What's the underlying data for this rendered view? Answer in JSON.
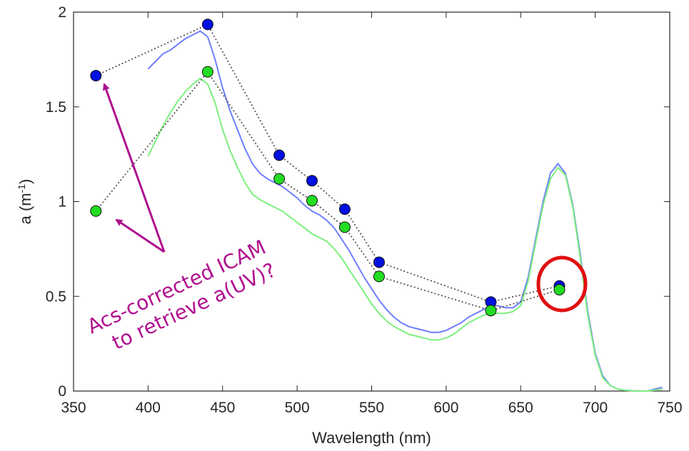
{
  "chart_data": {
    "type": "line",
    "title": "",
    "xlabel": "Wavelength (nm)",
    "ylabel_main": "a (m",
    "ylabel_sup": "-1",
    "ylabel_close": ")",
    "xlim": [
      350,
      750
    ],
    "ylim": [
      0,
      2
    ],
    "xticks": [
      350,
      400,
      450,
      500,
      550,
      600,
      650,
      700,
      750
    ],
    "yticks": [
      0,
      0.5,
      1,
      1.5,
      2
    ],
    "ytick_labels": [
      "0",
      "0.5",
      "1",
      "1.5",
      "2"
    ],
    "grid": false,
    "series": [
      {
        "color": "#6f7fff",
        "x": [
          400,
          405,
          410,
          415,
          420,
          425,
          430,
          435,
          440,
          445,
          450,
          455,
          460,
          465,
          470,
          475,
          480,
          485,
          490,
          495,
          500,
          505,
          510,
          515,
          520,
          525,
          530,
          535,
          540,
          545,
          550,
          555,
          560,
          565,
          570,
          575,
          580,
          585,
          590,
          595,
          600,
          605,
          610,
          615,
          620,
          625,
          630,
          635,
          640,
          645,
          650,
          655,
          660,
          665,
          670,
          675,
          680,
          685,
          690,
          695,
          700,
          705,
          710,
          715,
          720,
          725,
          730,
          735,
          740,
          745
        ],
        "values": [
          1.7,
          1.74,
          1.78,
          1.8,
          1.83,
          1.86,
          1.88,
          1.9,
          1.87,
          1.75,
          1.6,
          1.48,
          1.38,
          1.28,
          1.2,
          1.15,
          1.12,
          1.1,
          1.08,
          1.05,
          1.02,
          0.98,
          0.95,
          0.93,
          0.9,
          0.86,
          0.8,
          0.74,
          0.67,
          0.6,
          0.54,
          0.48,
          0.43,
          0.39,
          0.36,
          0.34,
          0.33,
          0.32,
          0.31,
          0.31,
          0.32,
          0.34,
          0.36,
          0.39,
          0.41,
          0.43,
          0.45,
          0.45,
          0.44,
          0.44,
          0.47,
          0.6,
          0.8,
          1.0,
          1.15,
          1.2,
          1.15,
          0.98,
          0.72,
          0.42,
          0.2,
          0.08,
          0.03,
          0.01,
          0.005,
          0.002,
          0.0,
          0.0,
          0.01,
          0.02
        ]
      },
      {
        "color": "#7ef07e",
        "x": [
          400,
          405,
          410,
          415,
          420,
          425,
          430,
          435,
          440,
          445,
          450,
          455,
          460,
          465,
          470,
          475,
          480,
          485,
          490,
          495,
          500,
          505,
          510,
          515,
          520,
          525,
          530,
          535,
          540,
          545,
          550,
          555,
          560,
          565,
          570,
          575,
          580,
          585,
          590,
          595,
          600,
          605,
          610,
          615,
          620,
          625,
          630,
          635,
          640,
          645,
          650,
          655,
          660,
          665,
          670,
          675,
          680,
          685,
          690,
          695,
          700,
          705,
          710,
          715,
          720,
          725,
          730,
          735,
          740,
          745
        ],
        "values": [
          1.24,
          1.32,
          1.4,
          1.47,
          1.53,
          1.58,
          1.62,
          1.65,
          1.62,
          1.52,
          1.38,
          1.27,
          1.18,
          1.1,
          1.04,
          1.01,
          0.99,
          0.97,
          0.95,
          0.92,
          0.89,
          0.86,
          0.83,
          0.81,
          0.79,
          0.75,
          0.7,
          0.64,
          0.58,
          0.52,
          0.46,
          0.41,
          0.37,
          0.34,
          0.32,
          0.3,
          0.29,
          0.28,
          0.27,
          0.27,
          0.28,
          0.3,
          0.33,
          0.36,
          0.38,
          0.4,
          0.41,
          0.41,
          0.41,
          0.42,
          0.45,
          0.58,
          0.78,
          0.98,
          1.12,
          1.18,
          1.14,
          0.97,
          0.7,
          0.4,
          0.19,
          0.07,
          0.03,
          0.01,
          0.005,
          0.002,
          0.0,
          0.0,
          0.005,
          0.01
        ]
      }
    ],
    "markers": [
      {
        "color": "#0010e0",
        "x": [
          365,
          440,
          488,
          510,
          532,
          555,
          630,
          676
        ],
        "values": [
          1.665,
          1.935,
          1.245,
          1.11,
          0.96,
          0.68,
          0.47,
          0.555
        ]
      },
      {
        "color": "#22dd22",
        "x": [
          365,
          440,
          488,
          510,
          532,
          555,
          630,
          676
        ],
        "values": [
          0.95,
          1.685,
          1.12,
          1.005,
          0.865,
          0.605,
          0.425,
          0.535
        ]
      }
    ],
    "annotation": {
      "line1": "Acs-corrected ICAM",
      "line2": "to retrieve a(UV)?",
      "color": "#b0108f",
      "highlight_color": "#e01010"
    }
  }
}
